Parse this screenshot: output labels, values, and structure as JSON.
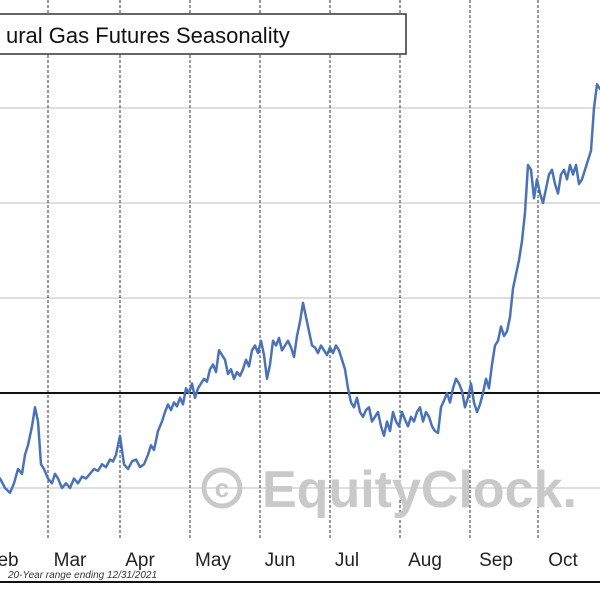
{
  "chart_data": {
    "type": "line",
    "title": "ural Gas Futures Seasonality",
    "footnote": "20-Year range ending 12/31/2021",
    "watermark": "© EquityClock.",
    "x_ticks": [
      "eb",
      "Mar",
      "Apr",
      "May",
      "Jun",
      "Jul",
      "Aug",
      "Sep",
      "Oct"
    ],
    "series": [
      {
        "color": "#4a72b8",
        "x": [
          0,
          5,
          10,
          14,
          18,
          22,
          25,
          28,
          32,
          35,
          38,
          41,
          44,
          48,
          52,
          55,
          58,
          62,
          66,
          70,
          74,
          78,
          82,
          86,
          90,
          94,
          98,
          102,
          106,
          110,
          113,
          116,
          120,
          124,
          128,
          132,
          136,
          140,
          144,
          148,
          151,
          154,
          158,
          162,
          165,
          168,
          171,
          174,
          177,
          180,
          183,
          186,
          189,
          192,
          195,
          198,
          201,
          204,
          207,
          210,
          213,
          216,
          219,
          222,
          225,
          228,
          231,
          234,
          237,
          240,
          243,
          246,
          249,
          252,
          255,
          258,
          261,
          264,
          267,
          270,
          273,
          276,
          279,
          282,
          285,
          288,
          291,
          294,
          297,
          300,
          303,
          306,
          309,
          312,
          315,
          318,
          321,
          324,
          327,
          330,
          333,
          336,
          339,
          342,
          345,
          348,
          351,
          354,
          357,
          360,
          363,
          366,
          369,
          372,
          375,
          378,
          381,
          384,
          387,
          390,
          393,
          396,
          399,
          402,
          405,
          408,
          411,
          414,
          417,
          420,
          423,
          426,
          429,
          432,
          435,
          438,
          441,
          444,
          447,
          450,
          453,
          456,
          459,
          462,
          465,
          468,
          471,
          474,
          477,
          480,
          483,
          486,
          489,
          492,
          495,
          498,
          501,
          504,
          507,
          510,
          513,
          516,
          519,
          522,
          525,
          528,
          531,
          534,
          537,
          540,
          543,
          546,
          549,
          552,
          555,
          558,
          561,
          564,
          567,
          570,
          573,
          576,
          579,
          582,
          585,
          588,
          591,
          594,
          597,
          600
        ],
        "y": [
          -0.9,
          -1.0,
          -1.05,
          -0.95,
          -0.8,
          -0.85,
          -0.65,
          -0.55,
          -0.35,
          -0.15,
          -0.3,
          -0.75,
          -0.8,
          -0.9,
          -0.95,
          -0.85,
          -0.9,
          -1.0,
          -0.95,
          -1.0,
          -0.9,
          -0.95,
          -0.88,
          -0.9,
          -0.85,
          -0.8,
          -0.82,
          -0.75,
          -0.78,
          -0.7,
          -0.72,
          -0.65,
          -0.45,
          -0.75,
          -0.8,
          -0.72,
          -0.7,
          -0.78,
          -0.75,
          -0.65,
          -0.55,
          -0.6,
          -0.4,
          -0.3,
          -0.2,
          -0.12,
          -0.18,
          -0.1,
          -0.14,
          -0.05,
          -0.12,
          0.05,
          0.0,
          0.1,
          -0.05,
          0.05,
          0.1,
          0.15,
          0.12,
          0.25,
          0.3,
          0.22,
          0.45,
          0.4,
          0.35,
          0.2,
          0.25,
          0.15,
          0.22,
          0.18,
          0.25,
          0.35,
          0.28,
          0.45,
          0.5,
          0.42,
          0.55,
          0.4,
          0.15,
          0.3,
          0.55,
          0.5,
          0.58,
          0.45,
          0.5,
          0.55,
          0.48,
          0.38,
          0.6,
          0.75,
          0.95,
          0.8,
          0.65,
          0.5,
          0.48,
          0.42,
          0.5,
          0.45,
          0.4,
          0.48,
          0.42,
          0.5,
          0.45,
          0.35,
          0.25,
          0.05,
          -0.1,
          -0.15,
          -0.05,
          -0.2,
          -0.25,
          -0.18,
          -0.15,
          -0.3,
          -0.25,
          -0.2,
          -0.35,
          -0.45,
          -0.3,
          -0.4,
          -0.2,
          -0.3,
          -0.35,
          -0.2,
          -0.28,
          -0.35,
          -0.25,
          -0.3,
          -0.2,
          -0.15,
          -0.3,
          -0.2,
          -0.25,
          -0.35,
          -0.4,
          -0.42,
          -0.15,
          -0.08,
          0.0,
          -0.1,
          0.05,
          0.15,
          0.1,
          0.02,
          -0.15,
          -0.05,
          0.1,
          -0.1,
          -0.2,
          -0.12,
          0.0,
          0.15,
          0.05,
          0.3,
          0.5,
          0.55,
          0.7,
          0.6,
          0.65,
          0.8,
          1.1,
          1.25,
          1.4,
          1.6,
          1.9,
          2.4,
          2.35,
          2.05,
          2.25,
          2.1,
          2.0,
          2.15,
          2.3,
          2.35,
          2.2,
          2.1,
          2.3,
          2.35,
          2.25,
          2.4,
          2.3,
          2.4,
          2.2,
          2.25,
          2.35,
          2.45,
          2.55,
          3.0,
          3.25,
          3.2
        ],
        "x_unit": "pixels",
        "y_range": [
          -1.2,
          3.4
        ]
      }
    ]
  }
}
